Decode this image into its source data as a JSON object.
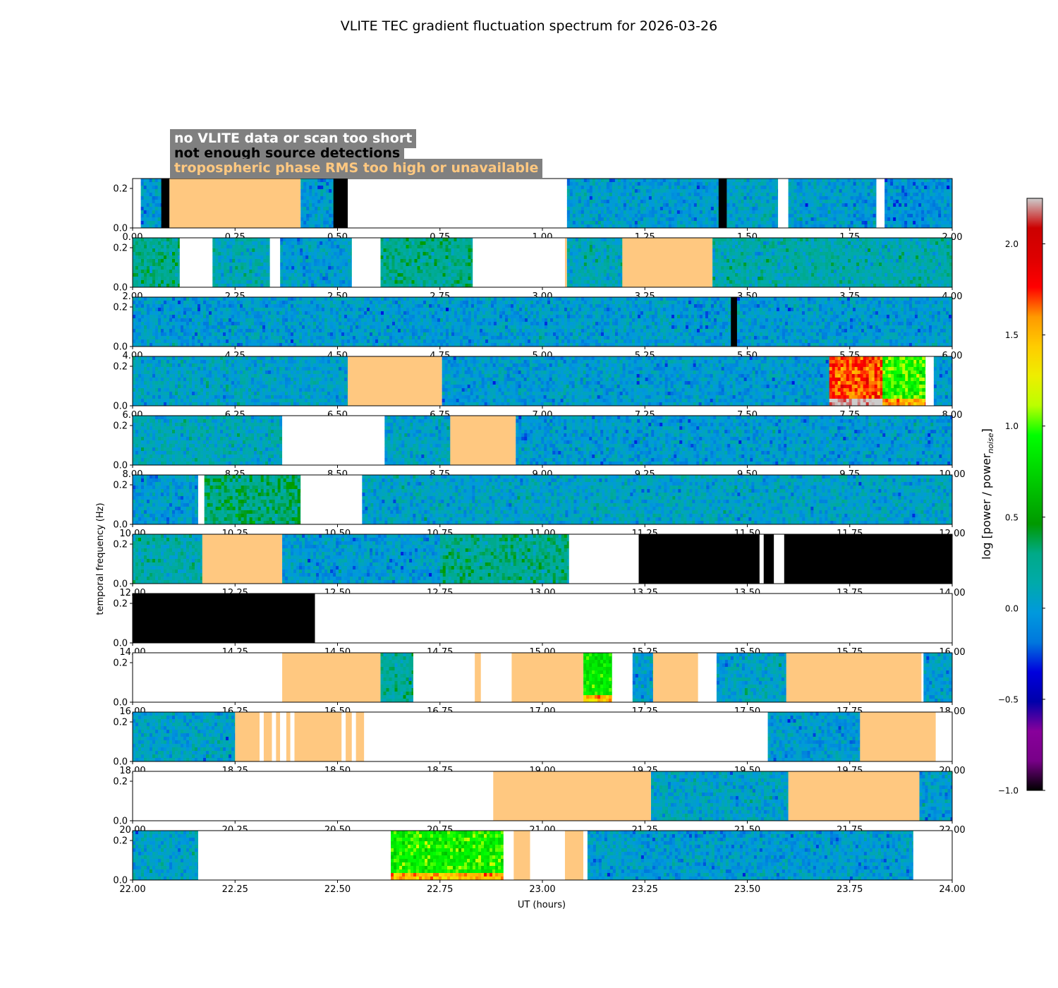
{
  "chart_data": {
    "type": "heatmap",
    "title": "VLITE TEC gradient fluctuation spectrum for 2026-03-26",
    "xlabel": "UT (hours)",
    "ylabel": "temporal frequency (Hz)",
    "colorbar_label": "log [power / power",
    "colorbar_label_sub": "noise",
    "colorbar_label_end": "]",
    "colorbar_range": [
      -1.0,
      2.25
    ],
    "colorbar_ticks": [
      "−1.0",
      "−0.5",
      "0.0",
      "0.5",
      "1.0",
      "1.5",
      "2.0"
    ],
    "colorbar_tick_values": [
      -1.0,
      -0.5,
      0.0,
      0.5,
      1.0,
      1.5,
      2.0
    ],
    "ylim": [
      0.0,
      0.25
    ],
    "y_ticks": [
      "0.0",
      "0.2"
    ],
    "y_tick_values": [
      0.0,
      0.2
    ],
    "legend": {
      "placement": "top-left",
      "entries": [
        {
          "label": "no VLITE data or scan too short",
          "text_color": "#ffffff",
          "fill": "#ffffff"
        },
        {
          "label": "not enough source detections",
          "text_color": "#000000",
          "fill": "#000000"
        },
        {
          "label": "tropospheric phase RMS too high or unavailable",
          "text_color": "#ffc880",
          "fill": "#ffc880"
        }
      ]
    },
    "status_colors": {
      "nodata": "#ffffff",
      "fewdet": "#000000",
      "trop": "#ffc880"
    },
    "panels": [
      {
        "xlim": [
          0,
          2
        ],
        "x_ticks": [
          "0.00",
          "0.25",
          "0.50",
          "0.75",
          "1.00",
          "1.25",
          "1.50",
          "1.75",
          "2.00"
        ],
        "segments": [
          {
            "start": 0.0,
            "end": 0.02,
            "state": "nodata"
          },
          {
            "start": 0.02,
            "end": 0.07,
            "state": "data",
            "level": 0.0
          },
          {
            "start": 0.07,
            "end": 0.09,
            "state": "fewdet"
          },
          {
            "start": 0.09,
            "end": 0.41,
            "state": "trop"
          },
          {
            "start": 0.41,
            "end": 0.49,
            "state": "data",
            "level": 0.0
          },
          {
            "start": 0.49,
            "end": 0.525,
            "state": "fewdet"
          },
          {
            "start": 0.525,
            "end": 1.06,
            "state": "nodata"
          },
          {
            "start": 1.06,
            "end": 1.43,
            "state": "data",
            "level": 0.0
          },
          {
            "start": 1.43,
            "end": 1.45,
            "state": "fewdet"
          },
          {
            "start": 1.45,
            "end": 1.575,
            "state": "data",
            "level": 0.05
          },
          {
            "start": 1.575,
            "end": 1.6,
            "state": "nodata"
          },
          {
            "start": 1.6,
            "end": 1.815,
            "state": "data",
            "level": 0.0
          },
          {
            "start": 1.815,
            "end": 1.835,
            "state": "nodata"
          },
          {
            "start": 1.835,
            "end": 2.0,
            "state": "data",
            "level": -0.05
          }
        ]
      },
      {
        "xlim": [
          2,
          4
        ],
        "x_ticks": [
          "2.00",
          "2.25",
          "2.50",
          "2.75",
          "3.00",
          "3.25",
          "3.50",
          "3.75",
          "4.00"
        ],
        "segments": [
          {
            "start": 2.0,
            "end": 2.115,
            "state": "data",
            "level": 0.25
          },
          {
            "start": 2.115,
            "end": 2.195,
            "state": "nodata"
          },
          {
            "start": 2.195,
            "end": 2.335,
            "state": "data",
            "level": 0.1
          },
          {
            "start": 2.335,
            "end": 2.36,
            "state": "nodata"
          },
          {
            "start": 2.36,
            "end": 2.535,
            "state": "data",
            "level": 0.0
          },
          {
            "start": 2.535,
            "end": 2.605,
            "state": "nodata"
          },
          {
            "start": 2.605,
            "end": 2.83,
            "state": "data",
            "level": 0.25
          },
          {
            "start": 2.83,
            "end": 3.055,
            "state": "nodata"
          },
          {
            "start": 3.055,
            "end": 3.06,
            "state": "trop"
          },
          {
            "start": 3.06,
            "end": 3.195,
            "state": "data",
            "level": 0.1
          },
          {
            "start": 3.195,
            "end": 3.415,
            "state": "trop"
          },
          {
            "start": 3.415,
            "end": 4.0,
            "state": "data",
            "level": 0.15
          }
        ]
      },
      {
        "xlim": [
          4,
          6
        ],
        "x_ticks": [
          "4.00",
          "4.25",
          "4.50",
          "4.75",
          "5.00",
          "5.25",
          "5.50",
          "5.75",
          "6.00"
        ],
        "segments": [
          {
            "start": 4.0,
            "end": 5.46,
            "state": "data",
            "level": 0.0
          },
          {
            "start": 5.46,
            "end": 5.475,
            "state": "fewdet"
          },
          {
            "start": 5.475,
            "end": 6.0,
            "state": "data",
            "level": 0.0
          }
        ]
      },
      {
        "xlim": [
          6,
          8
        ],
        "x_ticks": [
          "6.00",
          "6.25",
          "6.50",
          "6.75",
          "7.00",
          "7.25",
          "7.50",
          "7.75",
          "8.00"
        ],
        "segments": [
          {
            "start": 6.0,
            "end": 6.525,
            "state": "data",
            "level": 0.05
          },
          {
            "start": 6.525,
            "end": 6.755,
            "state": "trop"
          },
          {
            "start": 6.755,
            "end": 7.7,
            "state": "data",
            "level": 0.0
          },
          {
            "start": 7.7,
            "end": 7.83,
            "state": "data",
            "level": 1.7
          },
          {
            "start": 7.83,
            "end": 7.935,
            "state": "data",
            "level": 0.95
          },
          {
            "start": 7.935,
            "end": 7.955,
            "state": "nodata"
          },
          {
            "start": 7.955,
            "end": 8.0,
            "state": "data",
            "level": 0.0
          }
        ]
      },
      {
        "xlim": [
          8,
          10
        ],
        "x_ticks": [
          "8.00",
          "8.25",
          "8.50",
          "8.75",
          "9.00",
          "9.25",
          "9.50",
          "9.75",
          "10.00"
        ],
        "segments": [
          {
            "start": 8.0,
            "end": 8.365,
            "state": "data",
            "level": 0.1
          },
          {
            "start": 8.365,
            "end": 8.615,
            "state": "nodata"
          },
          {
            "start": 8.615,
            "end": 8.775,
            "state": "data",
            "level": 0.05
          },
          {
            "start": 8.775,
            "end": 8.935,
            "state": "trop"
          },
          {
            "start": 8.935,
            "end": 10.0,
            "state": "data",
            "level": 0.0
          }
        ]
      },
      {
        "xlim": [
          10,
          12
        ],
        "x_ticks": [
          "10.00",
          "10.25",
          "10.50",
          "10.75",
          "11.00",
          "11.25",
          "11.50",
          "11.75",
          "12.00"
        ],
        "segments": [
          {
            "start": 10.0,
            "end": 10.16,
            "state": "data",
            "level": 0.0
          },
          {
            "start": 10.16,
            "end": 10.175,
            "state": "nodata"
          },
          {
            "start": 10.175,
            "end": 10.41,
            "state": "data",
            "level": 0.3
          },
          {
            "start": 10.41,
            "end": 10.56,
            "state": "nodata"
          },
          {
            "start": 10.56,
            "end": 12.0,
            "state": "data",
            "level": 0.05
          }
        ]
      },
      {
        "xlim": [
          12,
          14
        ],
        "x_ticks": [
          "12.00",
          "12.25",
          "12.50",
          "12.75",
          "13.00",
          "13.25",
          "13.50",
          "13.75",
          "14.00"
        ],
        "segments": [
          {
            "start": 12.0,
            "end": 12.17,
            "state": "data",
            "level": 0.15
          },
          {
            "start": 12.17,
            "end": 12.365,
            "state": "trop"
          },
          {
            "start": 12.365,
            "end": 12.75,
            "state": "data",
            "level": 0.0
          },
          {
            "start": 12.75,
            "end": 13.065,
            "state": "data",
            "level": 0.25
          },
          {
            "start": 13.065,
            "end": 13.235,
            "state": "nodata"
          },
          {
            "start": 13.235,
            "end": 13.53,
            "state": "fewdet"
          },
          {
            "start": 13.53,
            "end": 13.54,
            "state": "nodata"
          },
          {
            "start": 13.54,
            "end": 13.565,
            "state": "fewdet"
          },
          {
            "start": 13.565,
            "end": 13.59,
            "state": "nodata"
          },
          {
            "start": 13.59,
            "end": 14.0,
            "state": "fewdet"
          }
        ]
      },
      {
        "xlim": [
          14,
          16
        ],
        "x_ticks": [
          "14.00",
          "14.25",
          "14.50",
          "14.75",
          "15.00",
          "15.25",
          "15.50",
          "15.75",
          "16.00"
        ],
        "segments": [
          {
            "start": 14.0,
            "end": 14.445,
            "state": "fewdet"
          },
          {
            "start": 14.445,
            "end": 16.0,
            "state": "nodata"
          }
        ]
      },
      {
        "xlim": [
          16,
          18
        ],
        "x_ticks": [
          "16.00",
          "16.25",
          "16.50",
          "16.75",
          "17.00",
          "17.25",
          "17.50",
          "17.75",
          "18.00"
        ],
        "segments": [
          {
            "start": 16.0,
            "end": 16.365,
            "state": "nodata"
          },
          {
            "start": 16.365,
            "end": 16.605,
            "state": "trop"
          },
          {
            "start": 16.605,
            "end": 16.685,
            "state": "data",
            "level": 0.2
          },
          {
            "start": 16.685,
            "end": 16.835,
            "state": "nodata"
          },
          {
            "start": 16.835,
            "end": 16.85,
            "state": "trop"
          },
          {
            "start": 16.85,
            "end": 16.925,
            "state": "nodata"
          },
          {
            "start": 16.925,
            "end": 17.1,
            "state": "trop"
          },
          {
            "start": 17.1,
            "end": 17.17,
            "state": "data",
            "level": 0.85
          },
          {
            "start": 17.17,
            "end": 17.22,
            "state": "nodata"
          },
          {
            "start": 17.22,
            "end": 17.27,
            "state": "data",
            "level": 0.0
          },
          {
            "start": 17.27,
            "end": 17.38,
            "state": "trop"
          },
          {
            "start": 17.38,
            "end": 17.425,
            "state": "nodata"
          },
          {
            "start": 17.425,
            "end": 17.595,
            "state": "data",
            "level": 0.05
          },
          {
            "start": 17.595,
            "end": 17.925,
            "state": "trop"
          },
          {
            "start": 17.925,
            "end": 17.93,
            "state": "nodata"
          },
          {
            "start": 17.93,
            "end": 18.0,
            "state": "data",
            "level": 0.0
          }
        ]
      },
      {
        "xlim": [
          18,
          20
        ],
        "x_ticks": [
          "18.00",
          "18.25",
          "18.50",
          "18.75",
          "19.00",
          "19.25",
          "19.50",
          "19.75",
          "20.00"
        ],
        "segments": [
          {
            "start": 18.0,
            "end": 18.25,
            "state": "data",
            "level": 0.05
          },
          {
            "start": 18.25,
            "end": 18.31,
            "state": "trop"
          },
          {
            "start": 18.31,
            "end": 18.32,
            "state": "nodata"
          },
          {
            "start": 18.32,
            "end": 18.34,
            "state": "trop"
          },
          {
            "start": 18.34,
            "end": 18.35,
            "state": "nodata"
          },
          {
            "start": 18.35,
            "end": 18.36,
            "state": "trop"
          },
          {
            "start": 18.36,
            "end": 18.375,
            "state": "nodata"
          },
          {
            "start": 18.375,
            "end": 18.385,
            "state": "trop"
          },
          {
            "start": 18.385,
            "end": 18.395,
            "state": "nodata"
          },
          {
            "start": 18.395,
            "end": 18.51,
            "state": "trop"
          },
          {
            "start": 18.51,
            "end": 18.52,
            "state": "nodata"
          },
          {
            "start": 18.52,
            "end": 18.535,
            "state": "trop"
          },
          {
            "start": 18.535,
            "end": 18.545,
            "state": "nodata"
          },
          {
            "start": 18.545,
            "end": 18.565,
            "state": "trop"
          },
          {
            "start": 18.565,
            "end": 19.55,
            "state": "nodata"
          },
          {
            "start": 19.55,
            "end": 19.775,
            "state": "data",
            "level": 0.0
          },
          {
            "start": 19.775,
            "end": 19.96,
            "state": "trop"
          },
          {
            "start": 19.96,
            "end": 20.0,
            "state": "nodata"
          }
        ]
      },
      {
        "xlim": [
          20,
          22
        ],
        "x_ticks": [
          "20.00",
          "20.25",
          "20.50",
          "20.75",
          "21.00",
          "21.25",
          "21.50",
          "21.75",
          "22.00"
        ],
        "segments": [
          {
            "start": 20.0,
            "end": 20.88,
            "state": "nodata"
          },
          {
            "start": 20.88,
            "end": 21.265,
            "state": "trop"
          },
          {
            "start": 21.265,
            "end": 21.6,
            "state": "data",
            "level": 0.05
          },
          {
            "start": 21.6,
            "end": 21.92,
            "state": "trop"
          },
          {
            "start": 21.92,
            "end": 22.0,
            "state": "data",
            "level": 0.0
          }
        ]
      },
      {
        "xlim": [
          22,
          24
        ],
        "x_ticks": [
          "22.00",
          "22.25",
          "22.50",
          "22.75",
          "23.00",
          "23.25",
          "23.50",
          "23.75",
          "24.00"
        ],
        "segments": [
          {
            "start": 22.0,
            "end": 22.16,
            "state": "data",
            "level": 0.05
          },
          {
            "start": 22.16,
            "end": 22.63,
            "state": "nodata"
          },
          {
            "start": 22.63,
            "end": 22.905,
            "state": "data",
            "level": 0.9
          },
          {
            "start": 22.905,
            "end": 22.93,
            "state": "nodata"
          },
          {
            "start": 22.93,
            "end": 22.97,
            "state": "trop"
          },
          {
            "start": 22.97,
            "end": 23.055,
            "state": "nodata"
          },
          {
            "start": 23.055,
            "end": 23.1,
            "state": "trop"
          },
          {
            "start": 23.1,
            "end": 23.11,
            "state": "nodata"
          },
          {
            "start": 23.11,
            "end": 23.905,
            "state": "data",
            "level": 0.0
          },
          {
            "start": 23.905,
            "end": 24.0,
            "state": "nodata"
          }
        ]
      }
    ]
  }
}
